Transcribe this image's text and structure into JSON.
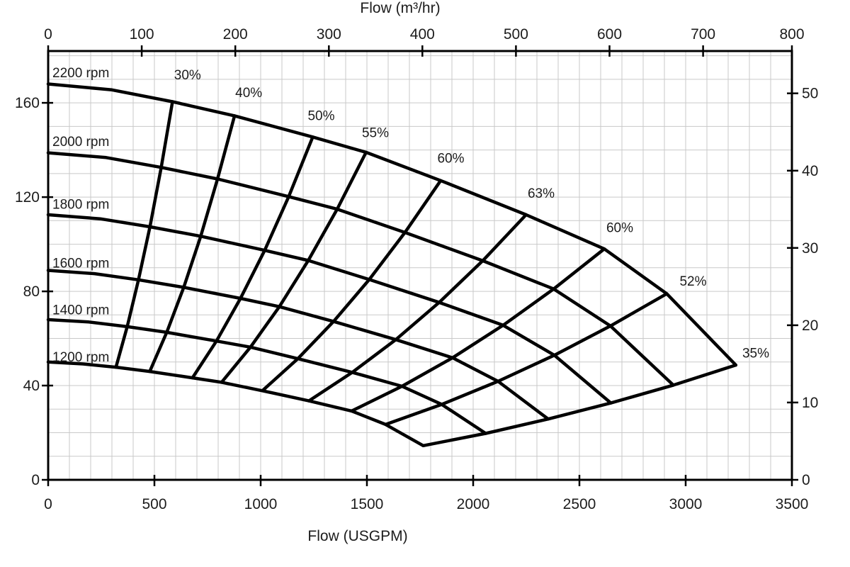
{
  "page": {
    "background": "#ffffff"
  },
  "chart_data": {
    "type": "line",
    "description": "Centrifugal pump performance map: head vs flow for six speeds with iso-efficiency contours",
    "colors": {
      "curve": "#000000",
      "axis": "#000000",
      "grid": "#c9c9c9",
      "text": "#1c1c1c",
      "background": "#ffffff"
    },
    "axes": {
      "top": {
        "label": "Flow (m³/hr)",
        "min": 0,
        "max": 800,
        "ticks": [
          0,
          100,
          200,
          300,
          400,
          500,
          600,
          700,
          800
        ],
        "usgpm_per_unit": 4.40287
      },
      "bottom": {
        "label": "Flow (USGPM)",
        "min": 0,
        "max": 3500,
        "ticks": [
          0,
          500,
          1000,
          1500,
          2000,
          2500,
          3000,
          3500
        ]
      },
      "left": {
        "label": "",
        "min": 0,
        "max": 182,
        "ticks": [
          0,
          40,
          80,
          120,
          160
        ]
      },
      "right": {
        "label": "",
        "min": 0,
        "max": 55.5,
        "ticks": [
          0,
          10,
          20,
          30,
          40,
          50
        ],
        "feet_per_unit": 3.28084
      }
    },
    "grid": {
      "x_step_usgpm": 100,
      "y_step_feet": 10
    },
    "rpm_curves": [
      {
        "label": "2200 rpm",
        "rpm": 2200,
        "label_pos": [
          20,
          173
        ],
        "points": [
          [
            0,
            168
          ],
          [
            300,
            165.5
          ],
          [
            585,
            160.5
          ],
          [
            877,
            154.5
          ],
          [
            1245,
            145.5
          ],
          [
            1496,
            139
          ],
          [
            1847,
            127
          ],
          [
            2249,
            112.5
          ],
          [
            2617,
            98
          ],
          [
            2911,
            79
          ],
          [
            3236,
            48.7
          ]
        ]
      },
      {
        "label": "2000 rpm",
        "rpm": 2000,
        "label_pos": [
          20,
          143.8
        ],
        "points": [
          [
            0,
            138.8
          ],
          [
            273,
            136.8
          ],
          [
            532,
            132.6
          ],
          [
            797,
            127.7
          ],
          [
            1132,
            120.2
          ],
          [
            1360,
            114.9
          ],
          [
            1679,
            105
          ],
          [
            2045,
            93
          ],
          [
            2379,
            81
          ],
          [
            2646,
            65.3
          ],
          [
            2942,
            40.2
          ]
        ]
      },
      {
        "label": "1800 rpm",
        "rpm": 1800,
        "label_pos": [
          20,
          117.2
        ],
        "points": [
          [
            0,
            112.5
          ],
          [
            245,
            110.8
          ],
          [
            479,
            107.4
          ],
          [
            718,
            103.4
          ],
          [
            1019,
            97.4
          ],
          [
            1224,
            93.1
          ],
          [
            1511,
            85
          ],
          [
            1840,
            75.3
          ],
          [
            2141,
            65.6
          ],
          [
            2382,
            52.9
          ],
          [
            2648,
            32.6
          ]
        ]
      },
      {
        "label": "1600 rpm",
        "rpm": 1600,
        "label_pos": [
          20,
          92.2
        ],
        "points": [
          [
            0,
            88.9
          ],
          [
            218,
            87.5
          ],
          [
            425,
            84.9
          ],
          [
            638,
            81.7
          ],
          [
            905,
            77
          ],
          [
            1088,
            73.5
          ],
          [
            1343,
            67.2
          ],
          [
            1636,
            59.5
          ],
          [
            1903,
            51.8
          ],
          [
            2117,
            41.8
          ],
          [
            2353,
            25.8
          ]
        ]
      },
      {
        "label": "1400 rpm",
        "rpm": 1400,
        "label_pos": [
          20,
          72.3
        ],
        "points": [
          [
            0,
            68
          ],
          [
            191,
            67
          ],
          [
            372,
            65
          ],
          [
            558,
            62.6
          ],
          [
            792,
            58.9
          ],
          [
            952,
            56.3
          ],
          [
            1175,
            51.4
          ],
          [
            1431,
            45.6
          ],
          [
            1665,
            39.7
          ],
          [
            1852,
            32
          ],
          [
            2059,
            19.7
          ]
        ]
      },
      {
        "label": "1200 rpm",
        "rpm": 1200,
        "label_pos": [
          20,
          52.4
        ],
        "points": [
          [
            0,
            50
          ],
          [
            164,
            49.2
          ],
          [
            319,
            47.8
          ],
          [
            478,
            46
          ],
          [
            679,
            43.3
          ],
          [
            816,
            41.4
          ],
          [
            1008,
            37.8
          ],
          [
            1227,
            33.5
          ],
          [
            1428,
            29.2
          ],
          [
            1588,
            23.5
          ],
          [
            1765,
            14.5
          ]
        ]
      }
    ],
    "efficiency_lines": [
      {
        "label": "30%",
        "label_pos": [
          656,
          172
        ],
        "points": [
          [
            585,
            160.5
          ],
          [
            532,
            132.6
          ],
          [
            479,
            107.4
          ],
          [
            425,
            84.9
          ],
          [
            372,
            65
          ],
          [
            319,
            47.8
          ]
        ]
      },
      {
        "label": "40%",
        "label_pos": [
          944,
          164.5
        ],
        "points": [
          [
            877,
            154.5
          ],
          [
            797,
            127.7
          ],
          [
            718,
            103.4
          ],
          [
            638,
            81.7
          ],
          [
            558,
            62.6
          ],
          [
            478,
            46
          ]
        ]
      },
      {
        "label": "50%",
        "label_pos": [
          1285,
          154.8
        ],
        "points": [
          [
            1245,
            145.5
          ],
          [
            1132,
            120.2
          ],
          [
            1019,
            97.4
          ],
          [
            905,
            77
          ],
          [
            792,
            58.9
          ],
          [
            679,
            43.3
          ]
        ]
      },
      {
        "label": "55%",
        "label_pos": [
          1540,
          147.6
        ],
        "points": [
          [
            1496,
            139
          ],
          [
            1360,
            114.9
          ],
          [
            1224,
            93.1
          ],
          [
            1088,
            73.5
          ],
          [
            952,
            56.3
          ],
          [
            816,
            41.4
          ]
        ]
      },
      {
        "label": "60%",
        "label_pos": [
          1895,
          136.8
        ],
        "points": [
          [
            1847,
            127
          ],
          [
            1679,
            105
          ],
          [
            1511,
            85
          ],
          [
            1343,
            67.2
          ],
          [
            1175,
            51.4
          ],
          [
            1008,
            37.8
          ]
        ]
      },
      {
        "label": "63%",
        "label_pos": [
          2320,
          121.8
        ],
        "points": [
          [
            2249,
            112.5
          ],
          [
            2045,
            93
          ],
          [
            1840,
            75.3
          ],
          [
            1636,
            59.5
          ],
          [
            1431,
            45.6
          ],
          [
            1227,
            33.5
          ]
        ]
      },
      {
        "label": "60%",
        "label_pos": [
          2690,
          107.2
        ],
        "points": [
          [
            2617,
            98
          ],
          [
            2379,
            81
          ],
          [
            2141,
            65.6
          ],
          [
            1903,
            51.8
          ],
          [
            1665,
            39.7
          ],
          [
            1428,
            29.2
          ]
        ]
      },
      {
        "label": "52%",
        "label_pos": [
          3035,
          84.5
        ],
        "points": [
          [
            2911,
            79
          ],
          [
            2646,
            65.3
          ],
          [
            2382,
            52.9
          ],
          [
            2117,
            41.8
          ],
          [
            1852,
            32
          ],
          [
            1588,
            23.5
          ]
        ]
      }
    ],
    "runout_line": {
      "label": "35%",
      "label_pos": [
        3330,
        54
      ],
      "points": [
        [
          1765,
          14.5
        ],
        [
          2059,
          19.7
        ],
        [
          2353,
          25.8
        ],
        [
          2648,
          32.6
        ],
        [
          2942,
          40.2
        ],
        [
          3236,
          48.7
        ]
      ]
    }
  }
}
